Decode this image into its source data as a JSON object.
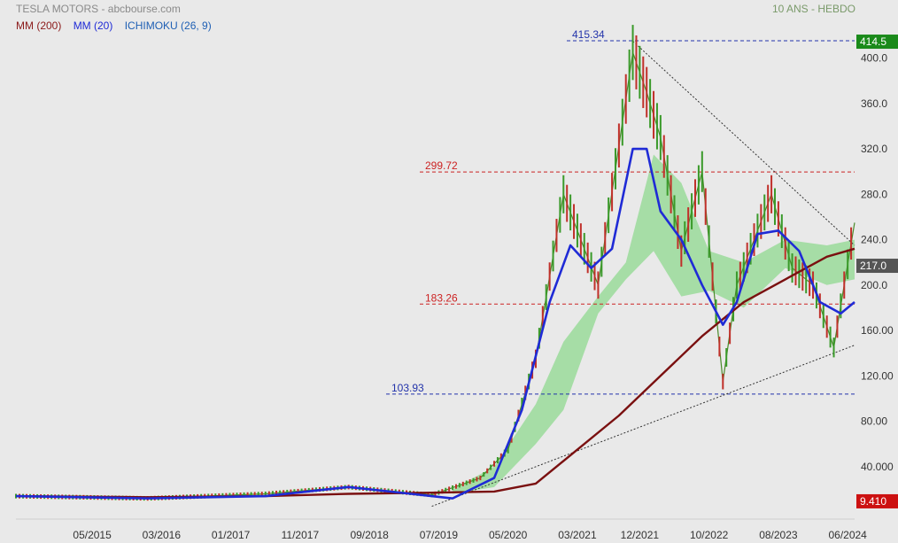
{
  "header": {
    "title": "TESLA MOTORS - abcbourse.com",
    "period": "10 ANS - HEBDO"
  },
  "legend": [
    {
      "label": "MM (200)",
      "color": "#8b1a1a"
    },
    {
      "label": "MM (20)",
      "color": "#1f2bd6"
    },
    {
      "label": "ICHIMOKU (26, 9)",
      "color": "#1e5fb4"
    }
  ],
  "chart_data": {
    "type": "line",
    "x_ticks": [
      "05/2015",
      "03/2016",
      "01/2017",
      "11/2017",
      "09/2018",
      "07/2019",
      "05/2020",
      "03/2021",
      "12/2021",
      "10/2022",
      "08/2023",
      "06/2024"
    ],
    "x_range": [
      "2014-06",
      "2024-07"
    ],
    "y_ticks": [
      "40.000",
      "80.00",
      "120.00",
      "160.00",
      "200.0",
      "240.0",
      "280.0",
      "320.0",
      "360.0",
      "400.0"
    ],
    "ylim": [
      0,
      420
    ],
    "levels": [
      {
        "label": "415.34",
        "value": 415.34,
        "color": "#2233aa"
      },
      {
        "label": "299.72",
        "value": 299.72,
        "color": "#cc2222"
      },
      {
        "label": "183.26",
        "value": 183.26,
        "color": "#cc2222"
      },
      {
        "label": "103.93",
        "value": 103.93,
        "color": "#2233aa"
      }
    ],
    "badges": [
      {
        "label": "414.5",
        "value": 414.5,
        "color": "#1a8a1a"
      },
      {
        "label": "217.0",
        "value": 217.0,
        "color": "#555555"
      },
      {
        "label": "9.410",
        "value": 9.41,
        "color": "#cc1111"
      }
    ],
    "series": [
      {
        "name": "MM (200)",
        "color": "#7a1010",
        "x": [
          "2014-06",
          "2016-01",
          "2017-06",
          "2018-06",
          "2019-06",
          "2020-03",
          "2020-09",
          "2021-03",
          "2021-09",
          "2022-03",
          "2022-09",
          "2023-03",
          "2023-09",
          "2024-03",
          "2024-07"
        ],
        "values": [
          14,
          13,
          14,
          16,
          17,
          18,
          25,
          55,
          85,
          120,
          155,
          185,
          205,
          225,
          232
        ]
      },
      {
        "name": "MM (20)",
        "color": "#1f2bd6",
        "x": [
          "2014-06",
          "2016-01",
          "2017-06",
          "2018-06",
          "2019-03",
          "2019-09",
          "2020-03",
          "2020-07",
          "2020-11",
          "2021-02",
          "2021-05",
          "2021-08",
          "2021-11",
          "2022-01",
          "2022-03",
          "2022-06",
          "2022-09",
          "2022-12",
          "2023-02",
          "2023-05",
          "2023-08",
          "2023-11",
          "2024-02",
          "2024-05",
          "2024-07"
        ],
        "values": [
          14,
          12,
          14,
          22,
          16,
          12,
          30,
          90,
          185,
          235,
          215,
          232,
          320,
          320,
          265,
          240,
          200,
          165,
          185,
          245,
          248,
          230,
          185,
          175,
          185
        ]
      },
      {
        "name": "Price",
        "color": "#4a8a2a",
        "x": [
          "2014-06",
          "2016-01",
          "2017-06",
          "2018-06",
          "2019-06",
          "2020-01",
          "2020-05",
          "2020-09",
          "2021-01",
          "2021-06",
          "2021-11",
          "2022-01",
          "2022-03",
          "2022-06",
          "2022-09",
          "2022-12",
          "2023-02",
          "2023-07",
          "2023-10",
          "2024-01",
          "2024-04",
          "2024-07"
        ],
        "values": [
          14,
          12,
          16,
          22,
          15,
          30,
          55,
          135,
          280,
          200,
          405,
          370,
          330,
          230,
          300,
          115,
          200,
          280,
          215,
          200,
          145,
          255
        ]
      }
    ],
    "ichimoku_cloud": {
      "x": [
        "2019-09",
        "2020-03",
        "2020-09",
        "2021-01",
        "2021-06",
        "2021-10",
        "2022-02",
        "2022-06",
        "2022-10",
        "2023-03",
        "2023-09",
        "2024-03",
        "2024-07"
      ],
      "upper": [
        20,
        40,
        95,
        150,
        190,
        220,
        315,
        290,
        230,
        220,
        240,
        235,
        240
      ],
      "lower": [
        16,
        22,
        60,
        90,
        175,
        205,
        230,
        190,
        195,
        180,
        215,
        200,
        205
      ]
    },
    "trendlines": [
      {
        "x": [
          "2021-11",
          "2024-07"
        ],
        "values": [
          415,
          235
        ]
      },
      {
        "x": [
          "2019-06",
          "2024-07"
        ],
        "values": [
          5,
          147
        ]
      }
    ]
  }
}
